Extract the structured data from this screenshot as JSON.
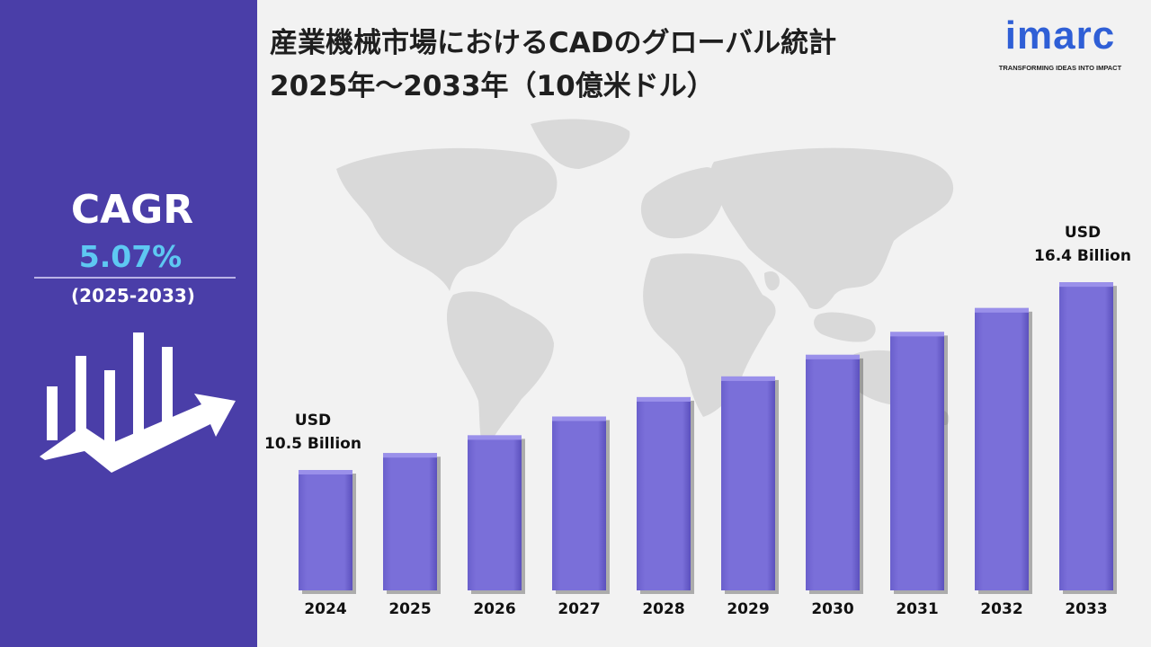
{
  "title": {
    "line1": "産業機械市場におけるCADのグローバル統計",
    "line2": "2025年〜2033年（10億米ドル）"
  },
  "logo": {
    "word": "imarc",
    "tagline": "TRANSFORMING IDEAS INTO IMPACT",
    "color": "#2f5fd6"
  },
  "cagr": {
    "label": "CAGR",
    "value": "5.07%",
    "period": "(2025-2033)",
    "value_color": "#5ec8f2"
  },
  "icons": [
    "growth-chart-arrow-icon",
    "world-map-icon"
  ],
  "colors": {
    "sidebar": "#4a3ea8",
    "bar_fill": "#7a6fd9",
    "bar_top": "#9a90ea",
    "map": "#d9d9d9"
  },
  "chart_data": {
    "type": "bar",
    "title": "",
    "xlabel": "",
    "ylabel": "",
    "categories": [
      "2024",
      "2025",
      "2026",
      "2027",
      "2028",
      "2029",
      "2030",
      "2031",
      "2032",
      "2033"
    ],
    "values": [
      10.5,
      11.03,
      11.59,
      12.18,
      12.79,
      13.44,
      14.12,
      14.84,
      15.59,
      16.4
    ],
    "units": "USD Billion",
    "annotations": [
      {
        "category": "2024",
        "line1": "USD",
        "line2": "10.5 Billion"
      },
      {
        "category": "2033",
        "line1": "USD",
        "line2": "16.4 Billion"
      }
    ],
    "grid": false,
    "legend": "none"
  }
}
